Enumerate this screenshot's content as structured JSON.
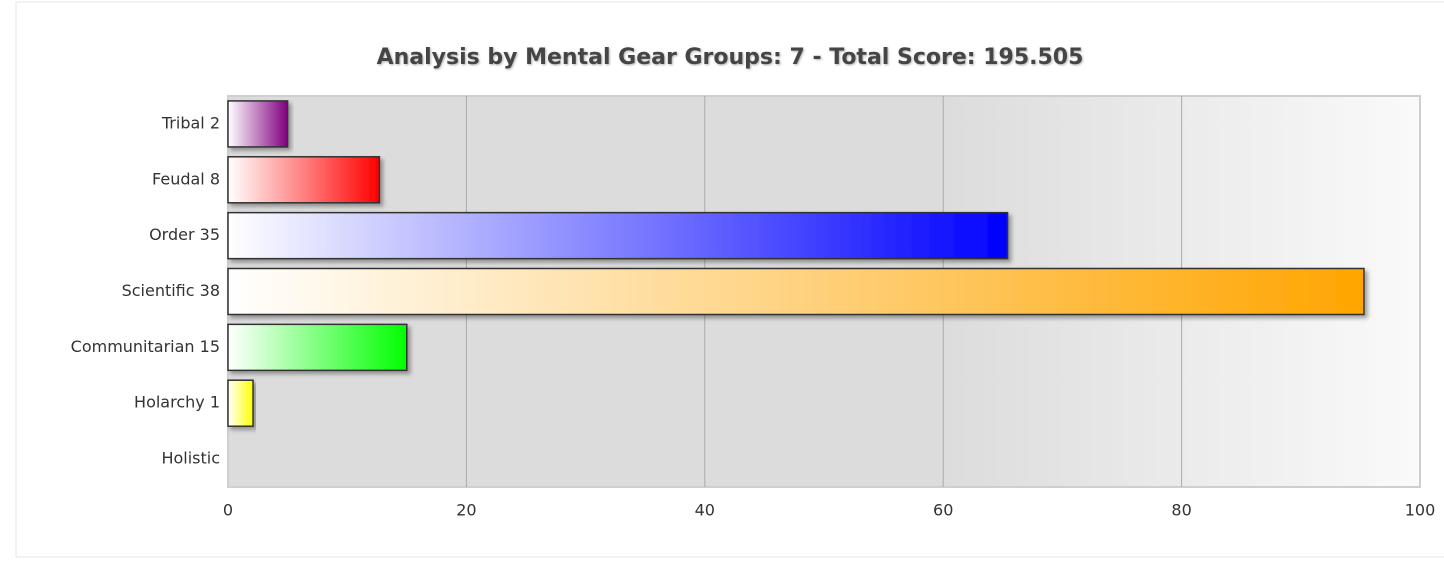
{
  "chart_data": {
    "type": "bar",
    "orientation": "horizontal",
    "title": "Analysis by Mental Gear Groups: 7 - Total Score: 195.505",
    "categories": [
      "Tribal 2",
      "Feudal 8",
      "Order 35",
      "Scientific 38",
      "Communitarian 15",
      "Holarchy 1",
      "Holistic"
    ],
    "values": [
      5,
      12.7,
      65.4,
      95.3,
      15,
      2.1,
      0
    ],
    "colors": [
      "#800080",
      "#ff0000",
      "#0000ff",
      "#ffa500",
      "#00ff00",
      "#ffff00",
      "#ffffff"
    ],
    "xlim": [
      0,
      100
    ],
    "xticks": [
      0,
      20,
      40,
      60,
      80,
      100
    ],
    "grid": true
  }
}
